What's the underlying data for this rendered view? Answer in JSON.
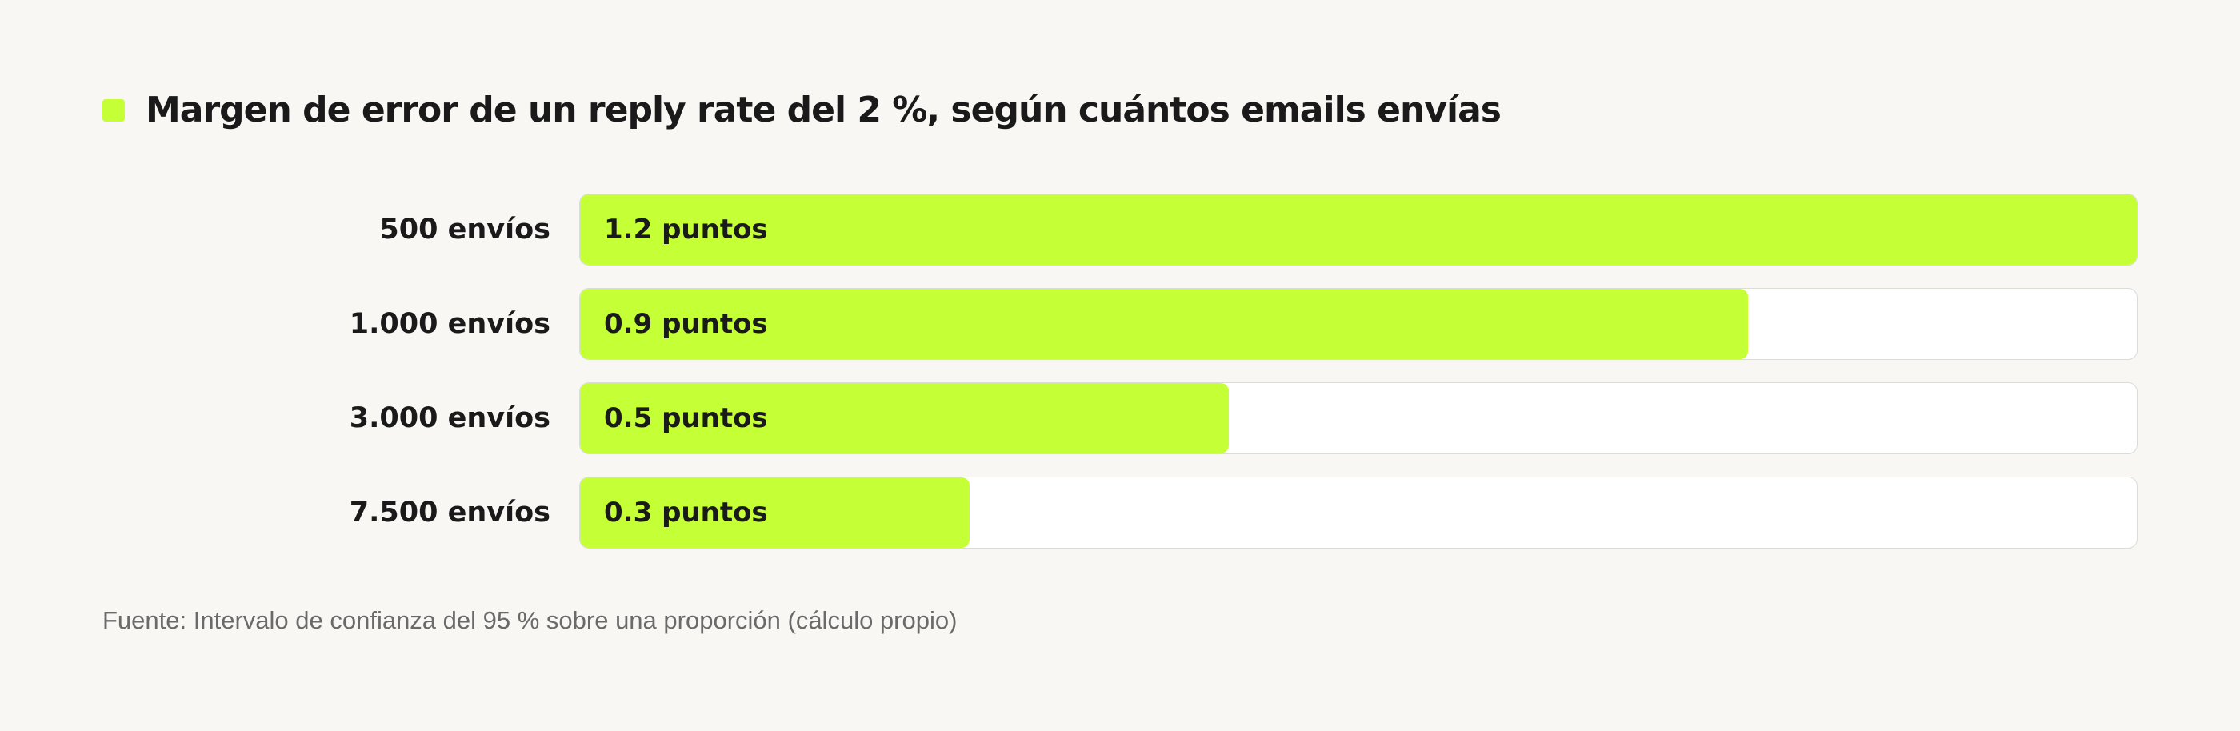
{
  "chart_data": {
    "type": "bar",
    "orientation": "horizontal",
    "title": "Margen de error de un reply rate del 2 %, según cuántos emails envías",
    "categories": [
      "500 envíos",
      "1.000 envíos",
      "3.000 envíos",
      "7.500 envíos"
    ],
    "values": [
      1.2,
      0.9,
      0.5,
      0.3
    ],
    "value_labels": [
      "1.2 puntos",
      "0.9 puntos",
      "0.5 puntos",
      "0.3 puntos"
    ],
    "xlim": [
      0,
      1.2
    ],
    "grid": false,
    "source": "Fuente: Intervalo de confianza del 95 % sobre una proporción (cálculo propio)"
  },
  "colors": {
    "bar": "#c5ff35",
    "track": "#ffffff",
    "background": "#f8f7f4",
    "text": "#1a1a1a",
    "muted": "#6a6a6a"
  }
}
